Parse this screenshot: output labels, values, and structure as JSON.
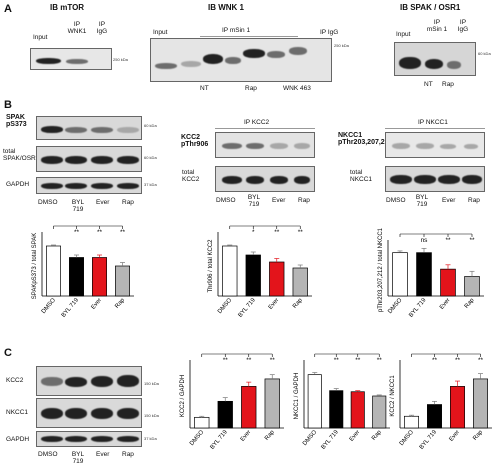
{
  "panelA": {
    "label": "A",
    "mtor": {
      "title": "IB mTOR",
      "lanes": [
        "Input",
        "IP WNK1",
        "IP IgG"
      ],
      "marker": "250 kDa"
    },
    "wnk1": {
      "title": "IB WNK 1",
      "lanes": [
        "Input",
        "IP mSin 1",
        "IP IgG"
      ],
      "conditions": [
        "NT",
        "Rap",
        "WNK 463"
      ],
      "marker": "250 kDa"
    },
    "spak": {
      "title": "IB SPAK / OSR1",
      "lanes": [
        "Input",
        "IP mSin 1",
        "IP IgG"
      ],
      "conditions": [
        "NT",
        "Rap"
      ],
      "marker": "60 kDa"
    }
  },
  "panelB": {
    "label": "B",
    "blots": {
      "spak_p": "SPAK pS373",
      "spak_total": "total SPAK/OSR1",
      "gapdh": "GAPDH",
      "kcc2_p": "KCC2 pThr906",
      "kcc2_ip": "IP KCC2",
      "kcc2_total": "total KCC2",
      "nkcc1_p": "NKCC1 pThr203,207,212",
      "nkcc1_ip": "IP NKCC1",
      "nkcc1_total": "total NKCC1",
      "markers": [
        "60 kDa",
        "60 kDa",
        "37 kDa"
      ]
    },
    "lanes": [
      "DMSO",
      "BYL 719",
      "Ever",
      "Rap"
    ]
  },
  "panelC": {
    "label": "C",
    "blots": {
      "kcc2": "KCC2",
      "nkcc1": "NKCC1",
      "gapdh": "GAPDH",
      "markers": [
        "150 kDa",
        "150 kDa",
        "37 kDa"
      ]
    },
    "lanes": [
      "DMSO",
      "BYL 719",
      "Ever",
      "Rap"
    ]
  },
  "colors": {
    "DMSO": "#ffffff",
    "BYL 719": "#000000",
    "Ever": "#e3141b",
    "Rap": "#b5b5b5"
  },
  "chart_data": [
    {
      "id": "B1",
      "type": "bar",
      "ylabel": "SPAKpS373 / total SPAK",
      "categories": [
        "DMSO",
        "BYL 719",
        "Ever",
        "Rap"
      ],
      "values": [
        1.0,
        0.77,
        0.77,
        0.6
      ],
      "errors": [
        0.02,
        0.05,
        0.05,
        0.07
      ],
      "sig": [
        "",
        "**",
        "**",
        "**"
      ]
    },
    {
      "id": "B2",
      "type": "bar",
      "ylabel": "Thr906 / total KCC2",
      "categories": [
        "DMSO",
        "BYL 719",
        "Ever",
        "Rap"
      ],
      "values": [
        1.0,
        0.82,
        0.68,
        0.56
      ],
      "errors": [
        0.02,
        0.06,
        0.07,
        0.06
      ],
      "sig": [
        "",
        "*",
        "**",
        "**"
      ]
    },
    {
      "id": "B3",
      "type": "bar",
      "ylabel": "pThr203,207,212 / total NKCC1",
      "categories": [
        "DMSO",
        "BYL 719",
        "Ever",
        "Rap"
      ],
      "values": [
        1.0,
        1.0,
        0.62,
        0.45
      ],
      "errors": [
        0.04,
        0.1,
        0.1,
        0.12
      ],
      "sig": [
        "",
        "ns",
        "**",
        "**"
      ]
    },
    {
      "id": "C1",
      "type": "bar",
      "ylabel": "KCC2 / GAPDH",
      "categories": [
        "DMSO",
        "BYL 719",
        "Ever",
        "Rap"
      ],
      "values": [
        0.2,
        0.5,
        0.78,
        0.92
      ],
      "errors": [
        0.02,
        0.07,
        0.08,
        0.08
      ],
      "sig": [
        "",
        "**",
        "**",
        "**"
      ]
    },
    {
      "id": "C2",
      "type": "bar",
      "ylabel": "NKCC1 / GAPDH",
      "categories": [
        "DMSO",
        "BYL 719",
        "Ever",
        "Rap"
      ],
      "values": [
        1.0,
        0.7,
        0.68,
        0.6
      ],
      "errors": [
        0.04,
        0.04,
        0.02,
        0.02
      ],
      "sig": [
        "",
        "**",
        "**",
        "**"
      ]
    },
    {
      "id": "C3",
      "type": "bar",
      "ylabel": "KCC2 / NKCC1",
      "categories": [
        "DMSO",
        "BYL 719",
        "Ever",
        "Rap"
      ],
      "values": [
        0.22,
        0.44,
        0.78,
        0.92
      ],
      "errors": [
        0.02,
        0.06,
        0.1,
        0.1
      ],
      "sig": [
        "",
        "**",
        "**",
        "**"
      ]
    }
  ]
}
